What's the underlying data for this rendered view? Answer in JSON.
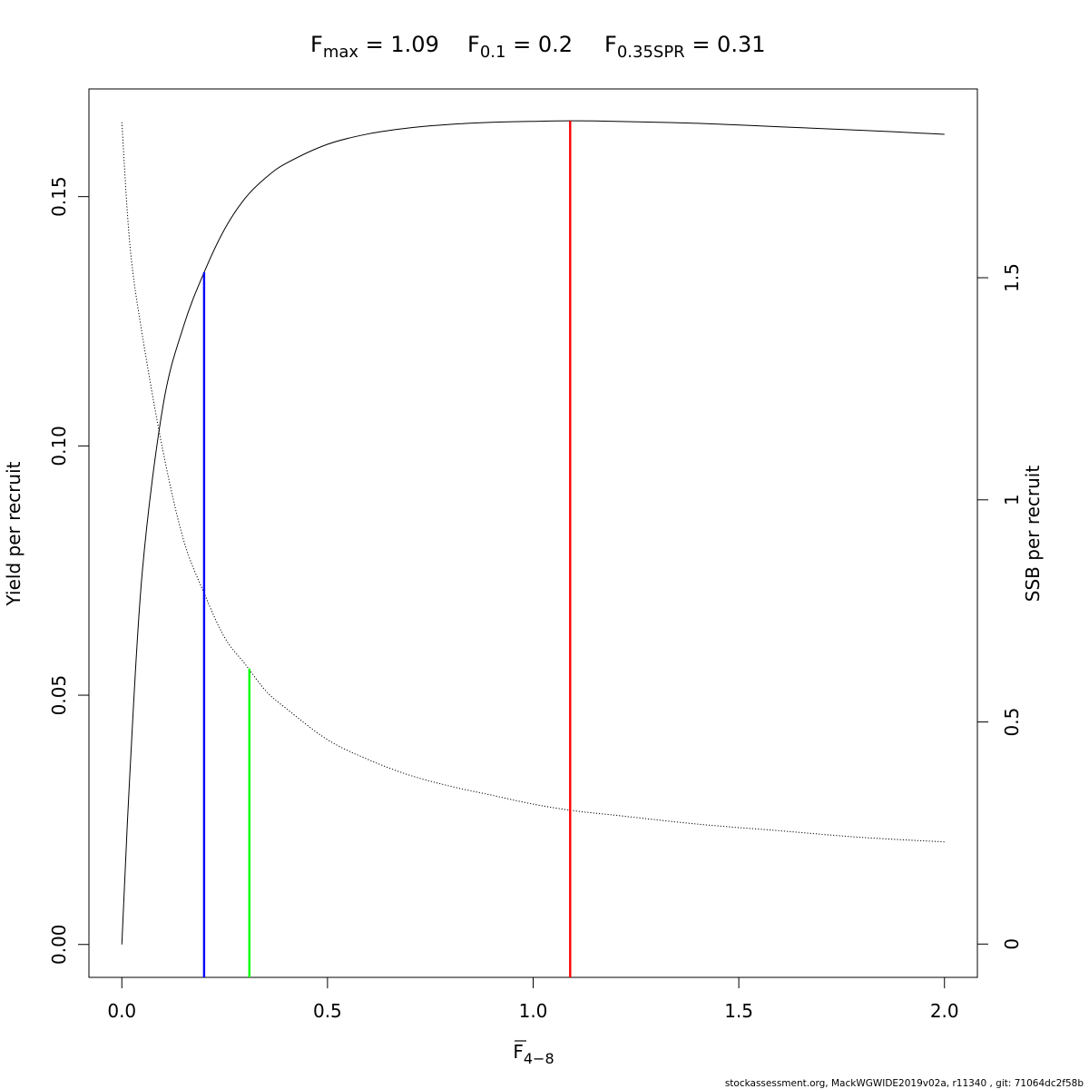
{
  "title": {
    "fmax": {
      "base": "F",
      "sub": "max",
      "rest": " = 1.09"
    },
    "f01": {
      "base": "F",
      "sub": "0.1",
      "rest": " = 0.2"
    },
    "f035": {
      "base": "F",
      "sub": "0.35SPR",
      "rest": " = 0.31"
    }
  },
  "footer": "stockassessment.org, MackWGWIDE2019v02a, r11340 , git: 71064dc2f58b",
  "chart_data": {
    "type": "line",
    "xlabel": {
      "base": "F",
      "sub": "4−8"
    },
    "ylabel_left": "Yield per recruit",
    "ylabel_right": "SSB per recruit",
    "xlim": [
      -0.08,
      2.08
    ],
    "ylim_left": [
      -0.0066,
      0.1716
    ],
    "ylim_right": [
      -0.075,
      1.925
    ],
    "x_ticks": [
      0,
      0.5,
      1,
      1.5,
      2
    ],
    "x_tick_labels": [
      "0.0",
      "0.5",
      "1.0",
      "1.5",
      "2.0"
    ],
    "y_ticks_left": [
      0,
      0.05,
      0.1,
      0.15
    ],
    "y_tick_labels_left": [
      "0.00",
      "0.05",
      "0.10",
      "0.15"
    ],
    "y_ticks_right": [
      0,
      0.5,
      1,
      1.5
    ],
    "y_tick_labels_right": [
      "0",
      "0.5",
      "1",
      "1.5"
    ],
    "series": [
      {
        "axis": "left",
        "style": "solid",
        "color": "#000000",
        "x": [
          0,
          0.02,
          0.05,
          0.1,
          0.15,
          0.2,
          0.25,
          0.3,
          0.35,
          0.4,
          0.5,
          0.6,
          0.7,
          0.8,
          0.9,
          1.0,
          1.09,
          1.2,
          1.4,
          1.6,
          1.8,
          2.0
        ],
        "y": [
          0,
          0.035,
          0.075,
          0.108,
          0.124,
          0.1348,
          0.1435,
          0.1497,
          0.1538,
          0.1567,
          0.1605,
          0.1626,
          0.1638,
          0.1645,
          0.1649,
          0.1651,
          0.1652,
          0.1651,
          0.1647,
          0.164,
          0.1633,
          0.1625
        ]
      },
      {
        "axis": "right",
        "style": "dotted",
        "color": "#000000",
        "x": [
          0,
          0.02,
          0.05,
          0.1,
          0.15,
          0.2,
          0.25,
          0.3,
          0.35,
          0.4,
          0.5,
          0.6,
          0.7,
          0.8,
          0.9,
          1.0,
          1.1,
          1.2,
          1.4,
          1.6,
          1.8,
          2.0
        ],
        "y": [
          1.85,
          1.57,
          1.37,
          1.11,
          0.91,
          0.79,
          0.69,
          0.63,
          0.57,
          0.53,
          0.46,
          0.415,
          0.38,
          0.355,
          0.335,
          0.315,
          0.3,
          0.29,
          0.27,
          0.255,
          0.24,
          0.23
        ]
      }
    ],
    "reference_lines": [
      {
        "x": 0.2,
        "y": 0.1348,
        "axis": "left",
        "color": "#0000ff"
      },
      {
        "x": 0.31,
        "y": 0.62,
        "axis": "right",
        "color": "#00ff00"
      },
      {
        "x": 1.09,
        "y": 0.1652,
        "axis": "left",
        "color": "#ff0000"
      }
    ]
  }
}
